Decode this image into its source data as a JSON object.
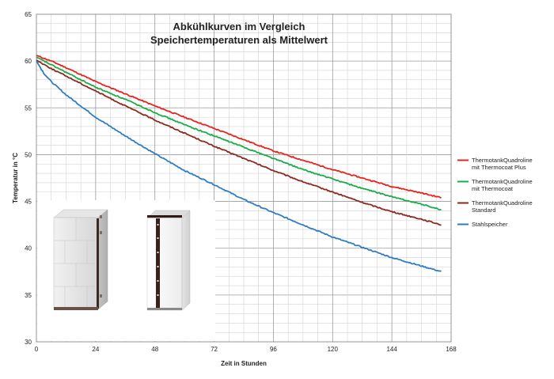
{
  "chart_data": {
    "type": "line",
    "title_lines": [
      "Abkühlkurven im Vergleich",
      "Speichertemperaturen als Mittelwert"
    ],
    "xlabel": "Zeit in Stunden",
    "ylabel": "Temperatur in °C",
    "xlim": [
      0,
      168
    ],
    "ylim": [
      30,
      65
    ],
    "xticks": [
      0,
      24,
      48,
      72,
      96,
      120,
      144,
      168
    ],
    "yticks": [
      30,
      35,
      40,
      45,
      50,
      55,
      60,
      65
    ],
    "grid": true,
    "legend_position": "right",
    "series": [
      {
        "name_lines": [
          "ThermotankQuadroline",
          "mit Thermocoat Plus"
        ],
        "color": "#e8231f",
        "x": [
          0,
          6,
          12,
          24,
          36,
          48,
          60,
          72,
          84,
          96,
          108,
          120,
          132,
          144,
          156,
          164
        ],
        "y": [
          60.6,
          60.0,
          59.3,
          57.8,
          56.5,
          55.2,
          54.0,
          52.8,
          51.6,
          50.4,
          49.4,
          48.4,
          47.5,
          46.6,
          45.9,
          45.4
        ]
      },
      {
        "name_lines": [
          "ThermotankQuadroline",
          "mit Thermocoat"
        ],
        "color": "#1aab4a",
        "x": [
          0,
          6,
          12,
          24,
          36,
          48,
          60,
          72,
          84,
          96,
          108,
          120,
          132,
          144,
          156,
          164
        ],
        "y": [
          60.4,
          59.6,
          58.8,
          57.2,
          55.9,
          54.5,
          53.2,
          52.0,
          50.8,
          49.6,
          48.4,
          47.4,
          46.4,
          45.5,
          44.7,
          44.1
        ]
      },
      {
        "name_lines": [
          "ThermotankQuadroline",
          "Standard"
        ],
        "color": "#8b2a1e",
        "x": [
          0,
          6,
          12,
          24,
          36,
          48,
          60,
          72,
          84,
          96,
          108,
          120,
          132,
          144,
          156,
          164
        ],
        "y": [
          60.1,
          59.2,
          58.4,
          56.8,
          55.2,
          53.7,
          52.3,
          50.9,
          49.6,
          48.3,
          47.1,
          46.0,
          44.9,
          43.9,
          43.1,
          42.5
        ]
      },
      {
        "name_lines": [
          "Stahlspeicher"
        ],
        "color": "#2f7cc4",
        "x": [
          0,
          3,
          6,
          12,
          24,
          36,
          48,
          60,
          72,
          84,
          96,
          108,
          120,
          132,
          144,
          156,
          164
        ],
        "y": [
          60.0,
          58.7,
          57.8,
          56.4,
          54.0,
          52.0,
          50.1,
          48.3,
          46.8,
          45.2,
          43.8,
          42.5,
          41.2,
          40.1,
          39.0,
          38.1,
          37.5
        ]
      }
    ]
  },
  "images": {
    "left_tank": "tiled-insulated-storage-tank",
    "right_tank": "white-storage-tank-with-dark-corner-trim"
  }
}
